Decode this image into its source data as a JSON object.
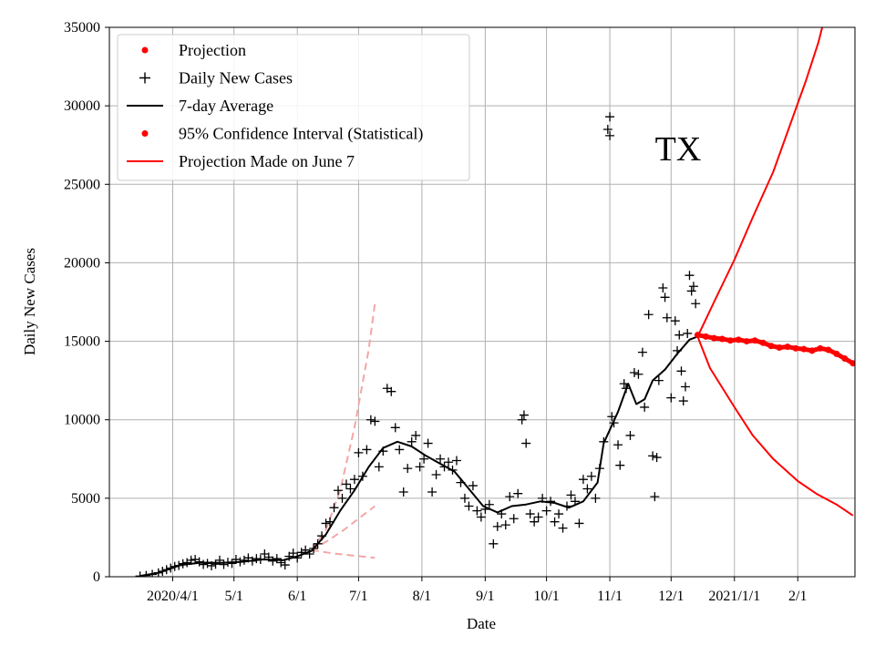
{
  "chart_data": {
    "type": "line",
    "title": "",
    "xlabel": "Date",
    "ylabel": "Daily New Cases",
    "annotation": "TX",
    "ylim": [
      0,
      35000
    ],
    "xlim": [
      "2020-03-01",
      "2021-03-01"
    ],
    "grid": true,
    "legend_position": "top-left",
    "x_ticks": [
      {
        "label": "2020/4/1",
        "date": "2020-04-01"
      },
      {
        "label": "5/1",
        "date": "2020-05-01"
      },
      {
        "label": "6/1",
        "date": "2020-06-01"
      },
      {
        "label": "7/1",
        "date": "2020-07-01"
      },
      {
        "label": "8/1",
        "date": "2020-08-01"
      },
      {
        "label": "9/1",
        "date": "2020-09-01"
      },
      {
        "label": "10/1",
        "date": "2020-10-01"
      },
      {
        "label": "11/1",
        "date": "2020-11-01"
      },
      {
        "label": "12/1",
        "date": "2020-12-01"
      },
      {
        "label": "2021/1/1",
        "date": "2021-01-01"
      },
      {
        "label": "2/1",
        "date": "2021-02-01"
      }
    ],
    "y_ticks": [
      0,
      5000,
      10000,
      15000,
      20000,
      25000,
      30000,
      35000
    ],
    "legend": [
      {
        "label": "Projection",
        "marker": "dot",
        "color": "#ff0000"
      },
      {
        "label": "Daily New Cases",
        "marker": "plus",
        "color": "#000000"
      },
      {
        "label": "7-day Average",
        "marker": "line",
        "color": "#000000"
      },
      {
        "label": "95% Confidence Interval (Statistical)",
        "marker": "dot",
        "color": "#ff0000"
      },
      {
        "label": "Projection Made on June 7",
        "marker": "line",
        "color": "#ff0000"
      }
    ],
    "series": [
      {
        "key": "daily",
        "style": "plus",
        "color": "#000000",
        "points": [
          [
            "2020-03-16",
            40
          ],
          [
            "2020-03-19",
            80
          ],
          [
            "2020-03-22",
            150
          ],
          [
            "2020-03-25",
            250
          ],
          [
            "2020-03-27",
            350
          ],
          [
            "2020-03-29",
            450
          ],
          [
            "2020-03-31",
            550
          ],
          [
            "2020-04-02",
            650
          ],
          [
            "2020-04-04",
            720
          ],
          [
            "2020-04-06",
            830
          ],
          [
            "2020-04-08",
            900
          ],
          [
            "2020-04-10",
            1050
          ],
          [
            "2020-04-12",
            1100
          ],
          [
            "2020-04-14",
            950
          ],
          [
            "2020-04-16",
            780
          ],
          [
            "2020-04-18",
            850
          ],
          [
            "2020-04-20",
            700
          ],
          [
            "2020-04-22",
            800
          ],
          [
            "2020-04-24",
            1050
          ],
          [
            "2020-04-26",
            780
          ],
          [
            "2020-04-28",
            920
          ],
          [
            "2020-04-30",
            850
          ],
          [
            "2020-05-02",
            1100
          ],
          [
            "2020-05-04",
            950
          ],
          [
            "2020-05-06",
            1050
          ],
          [
            "2020-05-08",
            1200
          ],
          [
            "2020-05-10",
            1000
          ],
          [
            "2020-05-12",
            1150
          ],
          [
            "2020-05-14",
            1100
          ],
          [
            "2020-05-16",
            1450
          ],
          [
            "2020-05-18",
            1250
          ],
          [
            "2020-05-20",
            1000
          ],
          [
            "2020-05-22",
            1150
          ],
          [
            "2020-05-24",
            900
          ],
          [
            "2020-05-26",
            750
          ],
          [
            "2020-05-28",
            1300
          ],
          [
            "2020-05-30",
            1500
          ],
          [
            "2020-06-01",
            1200
          ],
          [
            "2020-06-03",
            1550
          ],
          [
            "2020-06-05",
            1700
          ],
          [
            "2020-06-07",
            1450
          ],
          [
            "2020-06-09",
            1800
          ],
          [
            "2020-06-11",
            2100
          ],
          [
            "2020-06-13",
            2600
          ],
          [
            "2020-06-15",
            3400
          ],
          [
            "2020-06-17",
            3500
          ],
          [
            "2020-06-19",
            4400
          ],
          [
            "2020-06-21",
            5500
          ],
          [
            "2020-06-23",
            5000
          ],
          [
            "2020-06-25",
            5900
          ],
          [
            "2020-06-27",
            5600
          ],
          [
            "2020-06-29",
            6200
          ],
          [
            "2020-07-01",
            7900
          ],
          [
            "2020-07-03",
            6400
          ],
          [
            "2020-07-05",
            8100
          ],
          [
            "2020-07-07",
            10000
          ],
          [
            "2020-07-09",
            9900
          ],
          [
            "2020-07-11",
            7000
          ],
          [
            "2020-07-13",
            8000
          ],
          [
            "2020-07-15",
            12000
          ],
          [
            "2020-07-17",
            11800
          ],
          [
            "2020-07-19",
            9500
          ],
          [
            "2020-07-21",
            8100
          ],
          [
            "2020-07-23",
            5400
          ],
          [
            "2020-07-25",
            6900
          ],
          [
            "2020-07-27",
            8600
          ],
          [
            "2020-07-29",
            9000
          ],
          [
            "2020-07-31",
            7000
          ],
          [
            "2020-08-02",
            7500
          ],
          [
            "2020-08-04",
            8500
          ],
          [
            "2020-08-06",
            5400
          ],
          [
            "2020-08-08",
            6500
          ],
          [
            "2020-08-10",
            7500
          ],
          [
            "2020-08-12",
            7000
          ],
          [
            "2020-08-14",
            7300
          ],
          [
            "2020-08-16",
            6800
          ],
          [
            "2020-08-18",
            7400
          ],
          [
            "2020-08-20",
            6000
          ],
          [
            "2020-08-22",
            5000
          ],
          [
            "2020-08-24",
            4500
          ],
          [
            "2020-08-26",
            5800
          ],
          [
            "2020-08-28",
            4200
          ],
          [
            "2020-08-30",
            3800
          ],
          [
            "2020-09-01",
            4300
          ],
          [
            "2020-09-03",
            4600
          ],
          [
            "2020-09-05",
            2100
          ],
          [
            "2020-09-07",
            3200
          ],
          [
            "2020-09-09",
            4000
          ],
          [
            "2020-09-11",
            3300
          ],
          [
            "2020-09-13",
            5100
          ],
          [
            "2020-09-15",
            3700
          ],
          [
            "2020-09-17",
            5300
          ],
          [
            "2020-09-19",
            10000
          ],
          [
            "2020-09-20",
            10300
          ],
          [
            "2020-09-21",
            8500
          ],
          [
            "2020-09-23",
            4000
          ],
          [
            "2020-09-25",
            3500
          ],
          [
            "2020-09-27",
            3800
          ],
          [
            "2020-09-29",
            5000
          ],
          [
            "2020-10-01",
            4200
          ],
          [
            "2020-10-03",
            4800
          ],
          [
            "2020-10-05",
            3500
          ],
          [
            "2020-10-07",
            4000
          ],
          [
            "2020-10-09",
            3100
          ],
          [
            "2020-10-11",
            4500
          ],
          [
            "2020-10-13",
            5200
          ],
          [
            "2020-10-15",
            4800
          ],
          [
            "2020-10-17",
            3400
          ],
          [
            "2020-10-19",
            6200
          ],
          [
            "2020-10-21",
            5600
          ],
          [
            "2020-10-23",
            6400
          ],
          [
            "2020-10-25",
            5000
          ],
          [
            "2020-10-27",
            6900
          ],
          [
            "2020-10-29",
            8600
          ],
          [
            "2020-10-31",
            28500
          ],
          [
            "2020-11-01",
            29300
          ],
          [
            "2020-11-01",
            28100
          ],
          [
            "2020-11-02",
            10200
          ],
          [
            "2020-11-03",
            9800
          ],
          [
            "2020-11-05",
            8400
          ],
          [
            "2020-11-06",
            7100
          ],
          [
            "2020-11-08",
            12300
          ],
          [
            "2020-11-09",
            12000
          ],
          [
            "2020-11-11",
            9000
          ],
          [
            "2020-11-13",
            13000
          ],
          [
            "2020-11-15",
            12900
          ],
          [
            "2020-11-17",
            14300
          ],
          [
            "2020-11-18",
            10800
          ],
          [
            "2020-11-20",
            16700
          ],
          [
            "2020-11-22",
            7700
          ],
          [
            "2020-11-23",
            5100
          ],
          [
            "2020-11-24",
            7600
          ],
          [
            "2020-11-25",
            12500
          ],
          [
            "2020-11-27",
            18400
          ],
          [
            "2020-11-28",
            17800
          ],
          [
            "2020-11-29",
            16500
          ],
          [
            "2020-12-01",
            11400
          ],
          [
            "2020-12-03",
            16300
          ],
          [
            "2020-12-04",
            14400
          ],
          [
            "2020-12-05",
            15400
          ],
          [
            "2020-12-06",
            13100
          ],
          [
            "2020-12-07",
            11200
          ],
          [
            "2020-12-08",
            12100
          ],
          [
            "2020-12-09",
            15500
          ],
          [
            "2020-12-10",
            19200
          ],
          [
            "2020-12-11",
            18200
          ],
          [
            "2020-12-12",
            18500
          ],
          [
            "2020-12-13",
            17400
          ]
        ]
      },
      {
        "key": "avg7",
        "style": "line",
        "color": "#000000",
        "points": [
          [
            "2020-03-16",
            50
          ],
          [
            "2020-03-25",
            250
          ],
          [
            "2020-04-05",
            750
          ],
          [
            "2020-04-15",
            900
          ],
          [
            "2020-04-25",
            880
          ],
          [
            "2020-05-05",
            950
          ],
          [
            "2020-05-15",
            1100
          ],
          [
            "2020-05-25",
            1050
          ],
          [
            "2020-06-01",
            1300
          ],
          [
            "2020-06-08",
            1650
          ],
          [
            "2020-06-15",
            2700
          ],
          [
            "2020-06-22",
            4200
          ],
          [
            "2020-06-29",
            5500
          ],
          [
            "2020-07-06",
            7000
          ],
          [
            "2020-07-13",
            8200
          ],
          [
            "2020-07-20",
            8600
          ],
          [
            "2020-07-27",
            8300
          ],
          [
            "2020-08-03",
            7700
          ],
          [
            "2020-08-10",
            7200
          ],
          [
            "2020-08-17",
            6700
          ],
          [
            "2020-08-24",
            5600
          ],
          [
            "2020-08-31",
            4500
          ],
          [
            "2020-09-07",
            4100
          ],
          [
            "2020-09-14",
            4500
          ],
          [
            "2020-09-21",
            4600
          ],
          [
            "2020-09-28",
            4800
          ],
          [
            "2020-10-05",
            4700
          ],
          [
            "2020-10-12",
            4400
          ],
          [
            "2020-10-19",
            4800
          ],
          [
            "2020-10-26",
            6000
          ],
          [
            "2020-10-29",
            8500
          ],
          [
            "2020-11-05",
            10500
          ],
          [
            "2020-11-10",
            12300
          ],
          [
            "2020-11-14",
            11000
          ],
          [
            "2020-11-18",
            11300
          ],
          [
            "2020-11-22",
            12500
          ],
          [
            "2020-11-28",
            13200
          ],
          [
            "2020-12-04",
            14200
          ],
          [
            "2020-12-10",
            15100
          ],
          [
            "2020-12-14",
            15300
          ]
        ]
      },
      {
        "key": "projection",
        "style": "dots",
        "color": "#ff0000",
        "points": [
          [
            "2020-12-14",
            15400
          ],
          [
            "2020-12-18",
            15300
          ],
          [
            "2020-12-22",
            15200
          ],
          [
            "2020-12-26",
            15150
          ],
          [
            "2020-12-30",
            15050
          ],
          [
            "2021-01-03",
            15100
          ],
          [
            "2021-01-07",
            15000
          ],
          [
            "2021-01-11",
            15050
          ],
          [
            "2021-01-15",
            14900
          ],
          [
            "2021-01-19",
            14700
          ],
          [
            "2021-01-23",
            14600
          ],
          [
            "2021-01-27",
            14650
          ],
          [
            "2021-01-31",
            14550
          ],
          [
            "2021-02-04",
            14500
          ],
          [
            "2021-02-08",
            14400
          ],
          [
            "2021-02-12",
            14550
          ],
          [
            "2021-02-16",
            14450
          ],
          [
            "2021-02-20",
            14200
          ],
          [
            "2021-02-24",
            13900
          ],
          [
            "2021-02-28",
            13600
          ]
        ]
      },
      {
        "key": "ci_upper",
        "style": "line",
        "color": "#ff0000",
        "points": [
          [
            "2020-12-14",
            15300
          ],
          [
            "2020-12-22",
            17500
          ],
          [
            "2021-01-01",
            20200
          ],
          [
            "2021-01-10",
            22900
          ],
          [
            "2021-01-20",
            25800
          ],
          [
            "2021-01-28",
            28700
          ],
          [
            "2021-02-05",
            31600
          ],
          [
            "2021-02-11",
            34000
          ],
          [
            "2021-02-13",
            35000
          ]
        ]
      },
      {
        "key": "ci_lower",
        "style": "line",
        "color": "#ff0000",
        "points": [
          [
            "2020-12-14",
            15300
          ],
          [
            "2020-12-20",
            13300
          ],
          [
            "2021-01-01",
            10800
          ],
          [
            "2021-01-10",
            9000
          ],
          [
            "2021-01-20",
            7500
          ],
          [
            "2021-02-01",
            6100
          ],
          [
            "2021-02-10",
            5300
          ],
          [
            "2021-02-20",
            4600
          ],
          [
            "2021-02-28",
            3900
          ]
        ]
      },
      {
        "key": "june7_a",
        "style": "dashed",
        "color": "#f4a6a6",
        "points": [
          [
            "2020-06-08",
            1700
          ],
          [
            "2020-06-15",
            3000
          ],
          [
            "2020-06-22",
            5500
          ],
          [
            "2020-06-29",
            9500
          ],
          [
            "2020-07-06",
            14500
          ],
          [
            "2020-07-09",
            17400
          ]
        ]
      },
      {
        "key": "june7_b",
        "style": "dashed",
        "color": "#f4a6a6",
        "points": [
          [
            "2020-06-08",
            1700
          ],
          [
            "2020-06-16",
            2300
          ],
          [
            "2020-06-24",
            3000
          ],
          [
            "2020-07-02",
            3800
          ],
          [
            "2020-07-09",
            4500
          ]
        ]
      },
      {
        "key": "june7_c",
        "style": "dashed",
        "color": "#f4a6a6",
        "points": [
          [
            "2020-06-08",
            1700
          ],
          [
            "2020-06-18",
            1500
          ],
          [
            "2020-06-28",
            1350
          ],
          [
            "2020-07-09",
            1200
          ]
        ]
      }
    ]
  }
}
